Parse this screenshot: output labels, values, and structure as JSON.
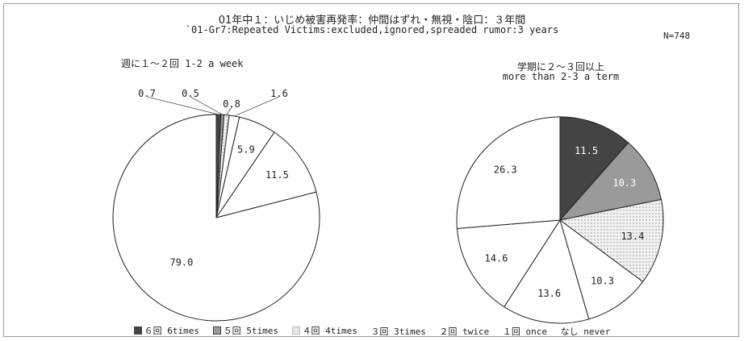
{
  "title_jp": "01年中１：いじめ被害再発率：仲間はずれ・無視・陰口：３年間",
  "title_en": "`01-Gr7:Repeated Victims:excluded,ignored,spreaded rumor:3 years",
  "n_label": "N=748",
  "legend": [
    {
      "label": "６回 6times",
      "color": "#444444"
    },
    {
      "label": "５回 5times",
      "color": "#9a9a9a"
    },
    {
      "label": "４回 4times",
      "color": "#e6e6e6"
    },
    {
      "label": "３回 3times",
      "color": "#ffffff"
    },
    {
      "label": "２回 twice",
      "color": "#ffffff"
    },
    {
      "label": "１回 once",
      "color": "#ffffff"
    },
    {
      "label": "なし never",
      "color": "#ffffff"
    }
  ],
  "chart_data": [
    {
      "type": "pie",
      "title": "週に１～２回 1-2 a week",
      "categories": [
        "6回 6times",
        "5回 5times",
        "4回 4times",
        "3回 3times",
        "2回 twice",
        "1回 once",
        "なし never"
      ],
      "values": [
        0.7,
        0.5,
        0.8,
        1.6,
        5.9,
        11.5,
        79.0
      ],
      "labels": [
        "0.7",
        "0.5",
        "0.8",
        "1.6",
        "5.9",
        "11.5",
        "79.0"
      ]
    },
    {
      "type": "pie",
      "title": "学期に２～３回以上",
      "subtitle": "more than 2-3 a term",
      "categories": [
        "6回 6times",
        "5回 5times",
        "4回 4times",
        "3回 3times",
        "2回 twice",
        "1回 once",
        "なし never"
      ],
      "values": [
        11.5,
        10.3,
        13.4,
        10.3,
        13.6,
        14.6,
        26.3
      ],
      "labels": [
        "11.5",
        "10.3",
        "13.4",
        "10.3",
        "13.6",
        "14.6",
        "26.3"
      ]
    }
  ]
}
